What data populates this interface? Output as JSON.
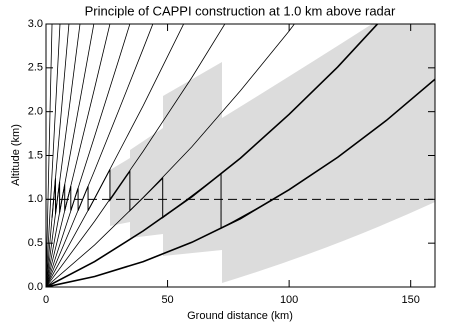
{
  "chart_data": {
    "type": "line",
    "title": "Principle of CAPPI construction at 1.0 km above radar",
    "x_label": "Ground distance (km)",
    "y_label": "Altitude (km)",
    "xlim": [
      0,
      160
    ],
    "ylim": [
      0,
      3
    ],
    "xticks": [
      0,
      50,
      100,
      150
    ],
    "yticks": [
      {
        "value": 0,
        "label": "0.0"
      },
      0.5,
      {
        "value": 1,
        "label": "1.0"
      },
      1.5,
      {
        "value": 2,
        "label": "2.0"
      },
      2.5,
      {
        "value": 3,
        "label": "3.0"
      }
    ],
    "reference_altitude": 1.0,
    "series": [
      {
        "color": "#000000",
        "line_width": 1.6,
        "x": [
          0,
          20,
          40,
          60,
          80,
          100,
          120,
          140,
          160
        ],
        "values": [
          0,
          0.12,
          0.29,
          0.51,
          0.78,
          1.11,
          1.48,
          1.9,
          2.37
        ]
      },
      {
        "color": "#000000",
        "line_width": 1.6,
        "x": [
          0,
          20,
          40,
          60,
          80,
          100,
          120,
          140
        ],
        "values": [
          0,
          0.29,
          0.64,
          1.03,
          1.47,
          1.97,
          2.51,
          3.11
        ]
      },
      {
        "color": "#000000",
        "line_width": 0.8,
        "x": [
          0,
          20,
          40,
          60,
          80,
          100,
          120
        ],
        "values": [
          0,
          0.48,
          1.02,
          1.6,
          2.24,
          2.92,
          3.66
        ]
      },
      {
        "color": "#000000",
        "line_width": 0.8,
        "x": [
          0,
          20,
          40,
          60,
          80
        ],
        "values": [
          0,
          0.75,
          1.55,
          2.39,
          3.29
        ]
      },
      {
        "color": "#000000",
        "line_width": 0.8,
        "x": [
          0,
          20,
          40,
          60
        ],
        "values": [
          0,
          1.01,
          2.07,
          3.19
        ]
      },
      {
        "color": "#000000",
        "line_width": 0.8,
        "x": [
          0,
          10,
          20,
          30,
          40,
          50
        ],
        "values": [
          0,
          0.66,
          1.33,
          2.02,
          2.72,
          3.43
        ]
      },
      {
        "color": "#000000",
        "line_width": 0.8,
        "x": [
          0,
          10,
          20,
          30,
          40
        ],
        "values": [
          0,
          0.85,
          1.72,
          2.6,
          3.49
        ]
      },
      {
        "color": "#000000",
        "line_width": 0.8,
        "x": [
          0,
          10,
          20,
          30
        ],
        "values": [
          0,
          1.13,
          2.27,
          3.43
        ]
      },
      {
        "color": "#000000",
        "line_width": 0.8,
        "x": [
          0,
          10,
          20
        ],
        "values": [
          0,
          1.52,
          3.05
        ]
      },
      {
        "color": "#000000",
        "line_width": 0.8,
        "x": [
          0,
          5,
          10,
          15
        ],
        "values": [
          0,
          1.07,
          2.14,
          3.22
        ]
      },
      {
        "color": "#000000",
        "line_width": 0.8,
        "x": [
          0,
          5,
          10
        ],
        "values": [
          0,
          1.59,
          3.18
        ]
      },
      {
        "color": "#000000",
        "line_width": 0.8,
        "x": [
          0,
          3,
          6
        ],
        "values": [
          0,
          1.56,
          3.13
        ]
      },
      {
        "color": "#000000",
        "line_width": 0.8,
        "x": [
          0,
          1,
          2,
          3
        ],
        "values": [
          0,
          1.21,
          2.42,
          3.63
        ]
      }
    ],
    "cappi": {
      "color": "#000000",
      "x": [
        2.5,
        3.9,
        3.9,
        5.6,
        5.6,
        7.7,
        7.7,
        10.2,
        10.2,
        13.2,
        13.2,
        17.3,
        17.3,
        26.3,
        26.3,
        34.5,
        34.5,
        48,
        48,
        72,
        72,
        93
      ],
      "values": [
        0.79,
        1.24,
        0.83,
        1.2,
        0.85,
        1.17,
        0.87,
        1.15,
        0.87,
        1.13,
        0.87,
        1.15,
        0.87,
        1.34,
        0.99,
        1.32,
        0.87,
        1.24,
        0.79,
        1.29,
        0.67,
        0.99
      ]
    }
  }
}
